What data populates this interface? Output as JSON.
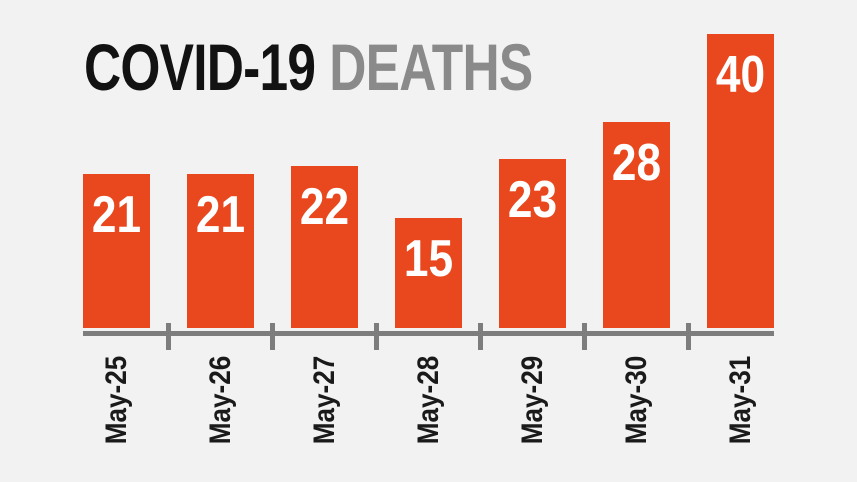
{
  "title": {
    "black": "COVID-19",
    "gray": "DEATHS"
  },
  "colors": {
    "background": "#F2F2F2",
    "bar": "#E9481F",
    "title_black": "#121212",
    "title_gray": "#8A8A8A",
    "axis": "#7D7D7D",
    "value_label": "#FFFFFF",
    "x_label": "#1A1A1A"
  },
  "chart_data": {
    "type": "bar",
    "title": "COVID-19 DEATHS",
    "categories": [
      "May-25",
      "May-26",
      "May-27",
      "May-28",
      "May-29",
      "May-30",
      "May-31"
    ],
    "values": [
      21,
      21,
      22,
      15,
      23,
      28,
      40
    ],
    "xlabel": "",
    "ylabel": "",
    "ylim": [
      0,
      40
    ],
    "grid": false,
    "legend": false,
    "value_labels_position": "inside-top of bars",
    "x_tick_label_rotation": 90,
    "x_ticks": "between bars only"
  }
}
